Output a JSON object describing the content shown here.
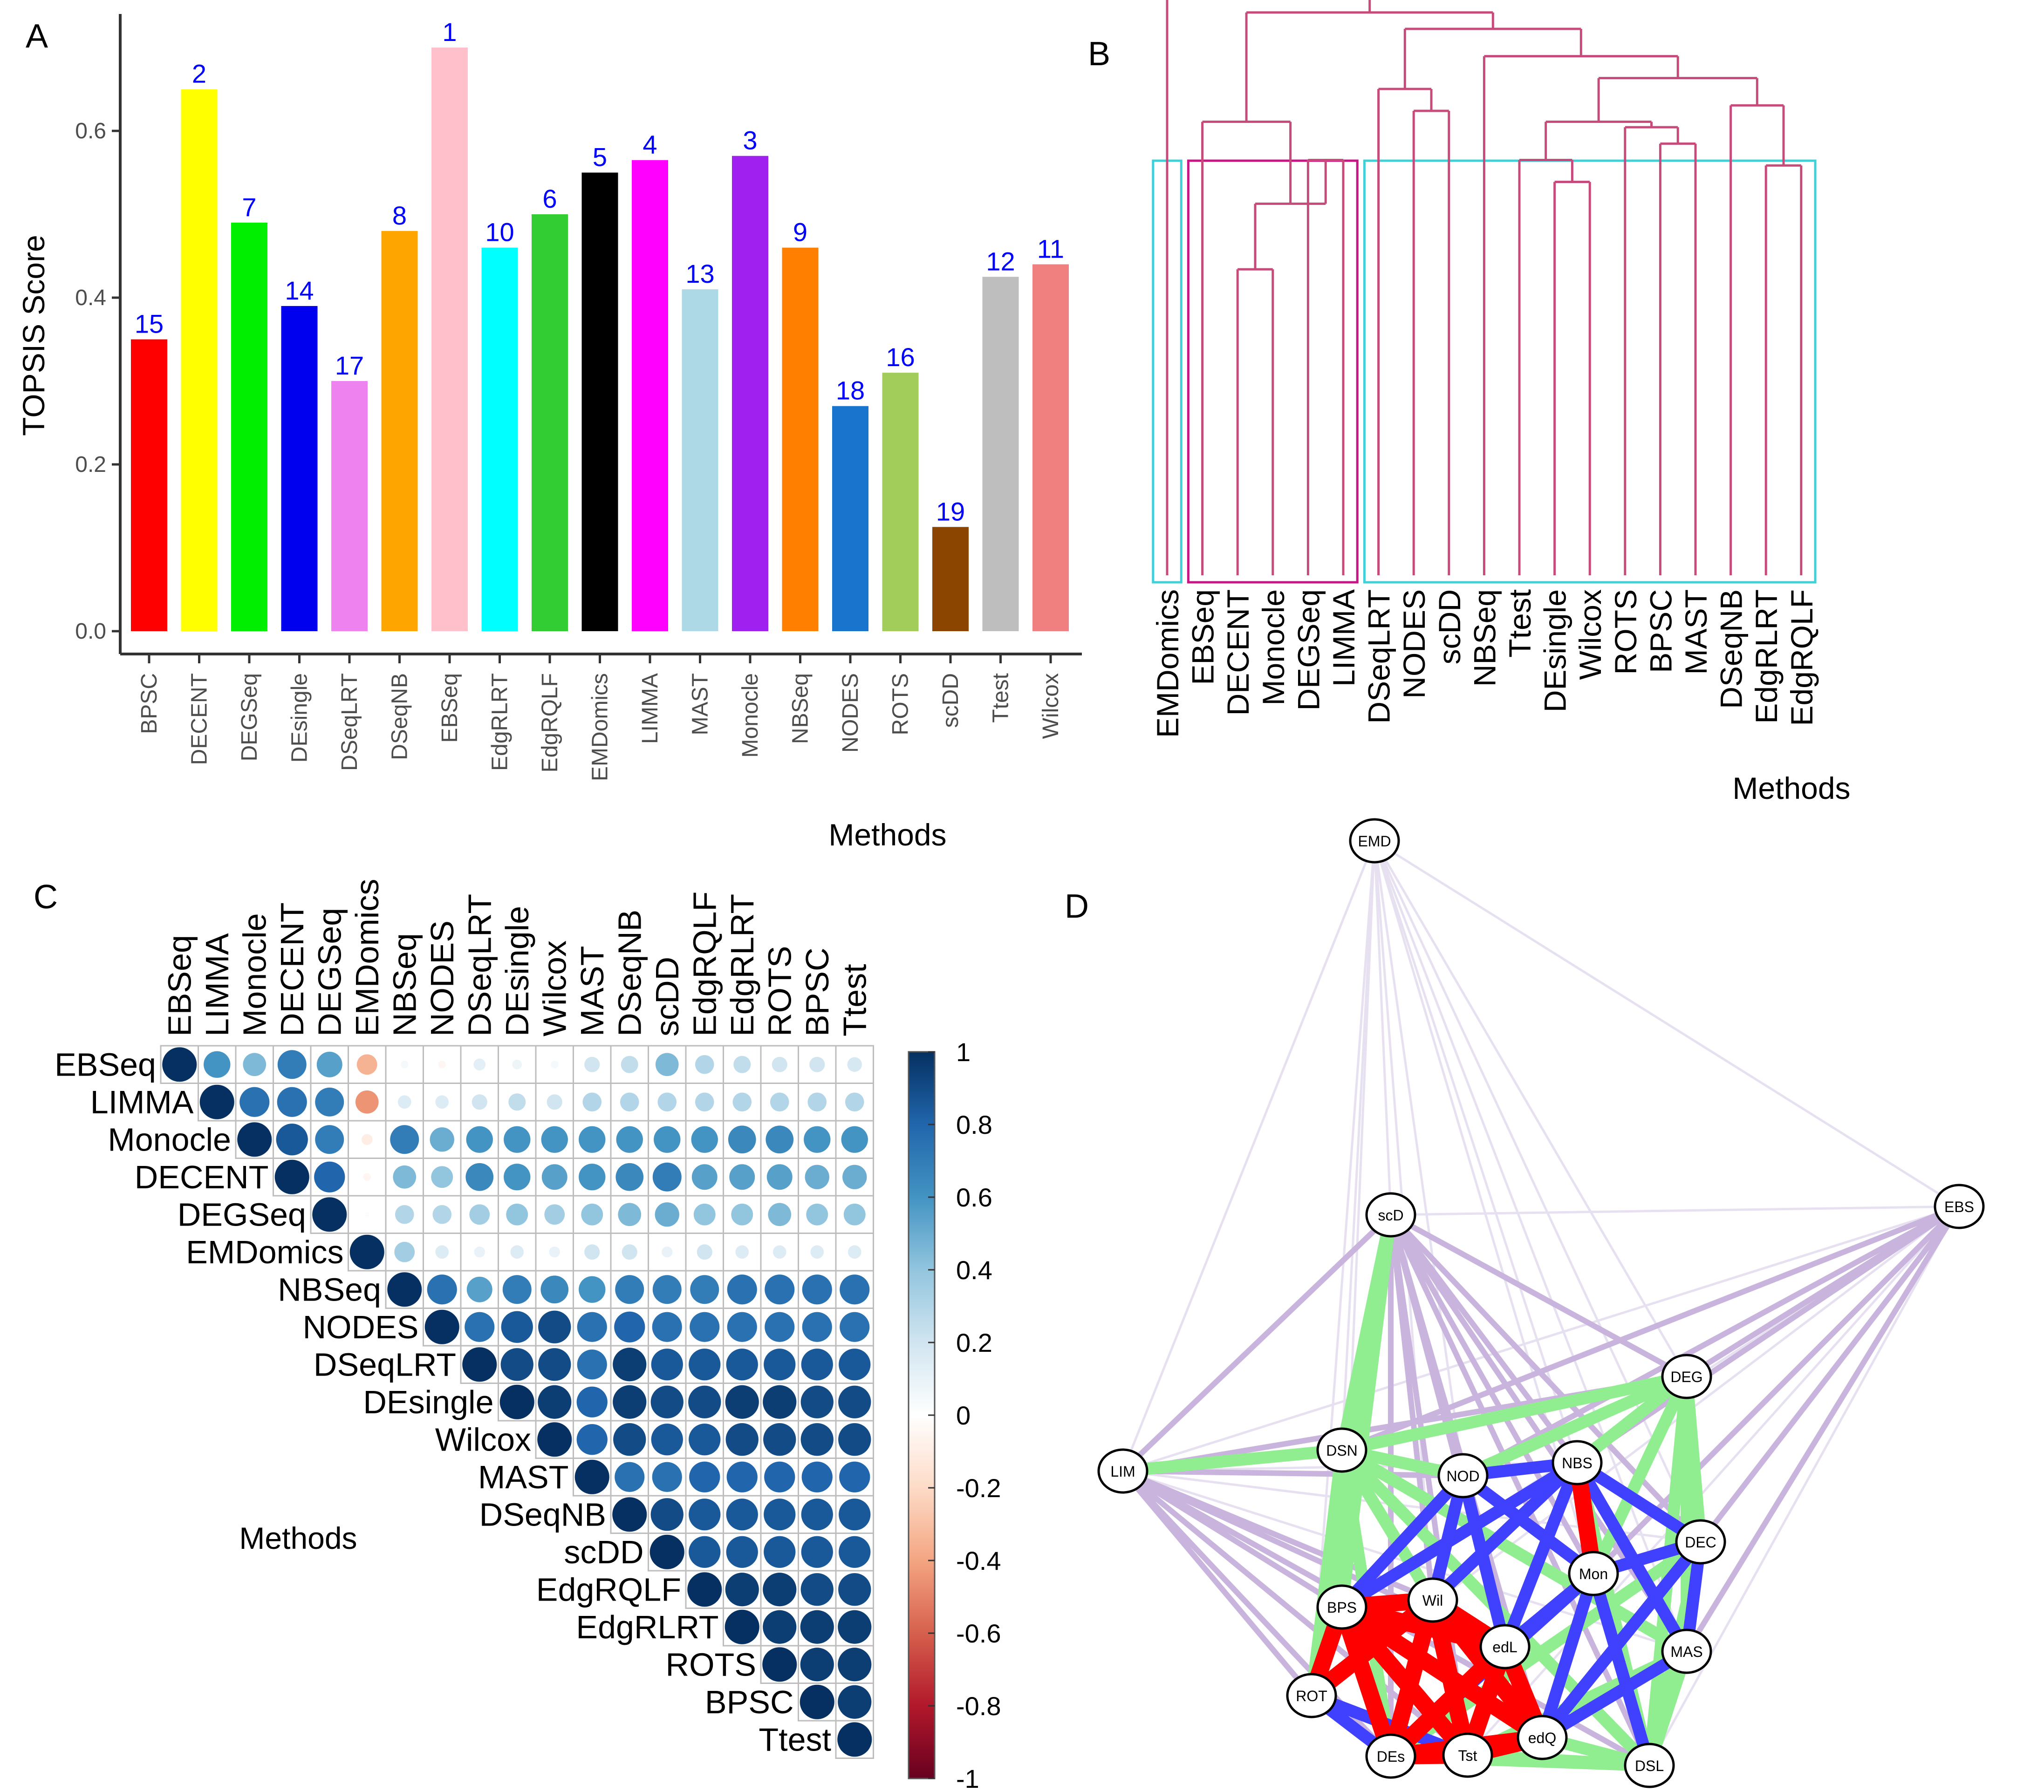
{
  "panel_labels": {
    "a": "A",
    "b": "B",
    "c": "C",
    "d": "D"
  },
  "chart_data": [
    {
      "panel": "A",
      "type": "bar",
      "title": "",
      "xlabel": "Methods",
      "ylabel": "TOPSIS Score",
      "ylim": [
        0,
        0.72
      ],
      "yticks": [
        "0.0",
        "0.2",
        "0.4",
        "0.6"
      ],
      "categories": [
        "BPSC",
        "DECENT",
        "DEGSeq",
        "DEsingle",
        "DSeqLRT",
        "DSeqNB",
        "EBSeq",
        "EdgRLRT",
        "EdgRQLF",
        "EMDomics",
        "LIMMA",
        "MAST",
        "Monocle",
        "NBSeq",
        "NODES",
        "ROTS",
        "scDD",
        "Ttest",
        "Wilcox"
      ],
      "values": [
        0.35,
        0.65,
        0.49,
        0.39,
        0.3,
        0.48,
        0.7,
        0.46,
        0.5,
        0.55,
        0.565,
        0.41,
        0.57,
        0.46,
        0.27,
        0.31,
        0.125,
        0.425,
        0.44
      ],
      "ranks": [
        "15",
        "2",
        "7",
        "14",
        "17",
        "8",
        "1",
        "10",
        "6",
        "5",
        "4",
        "13",
        "3",
        "9",
        "18",
        "16",
        "19",
        "12",
        "11"
      ],
      "colors": [
        "#ff0000",
        "#ffff00",
        "#00ee00",
        "#0000ee",
        "#ee82ee",
        "#ffa500",
        "#ffc0cb",
        "#00ffff",
        "#32cd32",
        "#000000",
        "#ff00ff",
        "#add8e6",
        "#a020f0",
        "#ff7f00",
        "#1874cd",
        "#a2cd5a",
        "#8b4500",
        "#bebebe",
        "#f08080"
      ],
      "rank_label_color": "#0000ff"
    },
    {
      "panel": "B",
      "type": "dendrogram",
      "xlabel": "Methods",
      "leaves": [
        "EMDomics",
        "EBSeq",
        "DECENT",
        "Monocle",
        "DEGSeq",
        "LIMMA",
        "DSeqLRT",
        "NODES",
        "scDD",
        "NBSeq",
        "Ttest",
        "DEsingle",
        "Wilcox",
        "ROTS",
        "BPSC",
        "MAST",
        "DSeqNB",
        "EdgRLRT",
        "EdgRQLF"
      ],
      "merges": [
        [
          -4,
          -5,
          0.49
        ],
        [
          -6,
          -7,
          0.59
        ],
        [
          1,
          2,
          0.66
        ],
        [
          -3,
          3,
          0.78
        ],
        [
          -2,
          4,
          0.81
        ],
        [
          -8,
          -9,
          0.65
        ],
        [
          -7.5,
          -10,
          0.73
        ],
        [
          -13,
          -14,
          0.36
        ],
        [
          -12,
          8,
          0.39
        ],
        [
          -11,
          9,
          0.41
        ],
        [
          -15,
          -16,
          0.41
        ],
        [
          -17,
          11,
          0.47
        ],
        [
          10,
          12,
          0.52
        ],
        [
          -18,
          -19,
          0.38
        ],
        [
          -17.5,
          14,
          0.6
        ],
        [
          13,
          15,
          0.68
        ],
        [
          -10.5,
          16,
          0.76
        ],
        [
          -9.5,
          17,
          0.82
        ],
        [
          5,
          18,
          0.9
        ],
        [
          -1,
          19,
          1.0
        ]
      ],
      "clusters": [
        {
          "from": "EMDomics",
          "to": "EMDomics",
          "color": "#00ced1"
        },
        {
          "from": "EBSeq",
          "to": "LIMMA",
          "color": "#c71585"
        },
        {
          "from": "DSeqLRT",
          "to": "EdgRQLF",
          "color": "#00ced1"
        }
      ],
      "line_color": "#c74b7a"
    },
    {
      "panel": "C",
      "type": "heatmap",
      "xlabel": "Methods",
      "labels": [
        "EBSeq",
        "LIMMA",
        "Monocle",
        "DECENT",
        "DEGSeq",
        "EMDomics",
        "NBSeq",
        "NODES",
        "DSeqLRT",
        "DEsingle",
        "Wilcox",
        "MAST",
        "DSeqNB",
        "scDD",
        "EdgRQLF",
        "EdgRLRT",
        "ROTS",
        "BPSC",
        "Ttest"
      ],
      "upper": [
        [
          1,
          0.6,
          0.45,
          0.7,
          0.55,
          -0.35,
          0.05,
          -0.05,
          0.12,
          0.08,
          0.05,
          0.2,
          0.25,
          0.45,
          0.3,
          0.25,
          0.2,
          0.2,
          0.18
        ],
        [
          1,
          0.75,
          0.75,
          0.7,
          -0.45,
          0.15,
          0.15,
          0.2,
          0.25,
          0.2,
          0.3,
          0.3,
          0.3,
          0.3,
          0.3,
          0.3,
          0.3,
          0.3
        ],
        [
          1,
          0.85,
          0.7,
          -0.1,
          0.7,
          0.5,
          0.6,
          0.6,
          0.6,
          0.6,
          0.6,
          0.6,
          0.6,
          0.65,
          0.65,
          0.6,
          0.6
        ],
        [
          1,
          0.8,
          -0.05,
          0.45,
          0.4,
          0.65,
          0.6,
          0.55,
          0.6,
          0.65,
          0.7,
          0.55,
          0.55,
          0.55,
          0.5,
          0.5
        ],
        [
          1,
          0.02,
          0.3,
          0.3,
          0.35,
          0.4,
          0.35,
          0.4,
          0.45,
          0.5,
          0.4,
          0.4,
          0.45,
          0.4,
          0.4
        ],
        [
          1,
          0.35,
          0.15,
          0.1,
          0.15,
          0.1,
          0.2,
          0.2,
          0.1,
          0.2,
          0.15,
          0.15,
          0.15,
          0.15
        ],
        [
          1,
          0.75,
          0.55,
          0.7,
          0.65,
          0.6,
          0.7,
          0.7,
          0.7,
          0.75,
          0.75,
          0.75,
          0.75
        ],
        [
          1,
          0.75,
          0.85,
          0.9,
          0.75,
          0.8,
          0.75,
          0.75,
          0.75,
          0.75,
          0.75,
          0.75
        ],
        [
          1,
          0.9,
          0.9,
          0.75,
          0.95,
          0.85,
          0.85,
          0.85,
          0.85,
          0.85,
          0.85
        ],
        [
          1,
          0.95,
          0.8,
          0.95,
          0.9,
          0.9,
          0.95,
          0.95,
          0.9,
          0.9
        ],
        [
          1,
          0.8,
          0.9,
          0.85,
          0.85,
          0.9,
          0.9,
          0.9,
          0.9
        ],
        [
          1,
          0.75,
          0.75,
          0.8,
          0.8,
          0.8,
          0.8,
          0.8
        ],
        [
          1,
          0.9,
          0.85,
          0.85,
          0.85,
          0.85,
          0.85
        ],
        [
          1,
          0.85,
          0.85,
          0.85,
          0.85,
          0.85
        ],
        [
          1,
          0.95,
          0.95,
          0.9,
          0.9
        ],
        [
          1,
          0.95,
          0.95,
          0.95
        ],
        [
          1,
          0.95,
          0.95
        ],
        [
          1,
          0.95
        ],
        [
          1
        ]
      ],
      "colorbar_ticks": [
        "1",
        "0.8",
        "0.6",
        "0.4",
        "0.2",
        "0",
        "-0.2",
        "-0.4",
        "-0.6",
        "-0.8",
        "-1"
      ],
      "colorbar_range": [
        -1,
        1
      ]
    },
    {
      "panel": "D",
      "type": "network",
      "nodes": [
        {
          "id": "EMD",
          "label": "EMD"
        },
        {
          "id": "scD",
          "label": "scD"
        },
        {
          "id": "EBS",
          "label": "EBS"
        },
        {
          "id": "DEG",
          "label": "DEG"
        },
        {
          "id": "LIM",
          "label": "LIM"
        },
        {
          "id": "DSN",
          "label": "DSN"
        },
        {
          "id": "NOD",
          "label": "NOD"
        },
        {
          "id": "NBS",
          "label": "NBS"
        },
        {
          "id": "DEC",
          "label": "DEC"
        },
        {
          "id": "Mon",
          "label": "Mon"
        },
        {
          "id": "BPS",
          "label": "BPS"
        },
        {
          "id": "Wil",
          "label": "Wil"
        },
        {
          "id": "edL",
          "label": "edL"
        },
        {
          "id": "MAS",
          "label": "MAS"
        },
        {
          "id": "ROT",
          "label": "ROT"
        },
        {
          "id": "DEs",
          "label": "DEs"
        },
        {
          "id": "Tst",
          "label": "Tst"
        },
        {
          "id": "edQ",
          "label": "edQ"
        },
        {
          "id": "DSL",
          "label": "DSL"
        }
      ],
      "edge_colors": {
        "weak": "#e6e0f0",
        "moderate": "#c8b4dc",
        "strong": "#90ee90",
        "stronger": "#4040ff",
        "strongest": "#ff0000"
      },
      "edges_strongest": [
        [
          "NBS",
          "Mon"
        ],
        [
          "BPS",
          "Wil"
        ],
        [
          "BPS",
          "edL"
        ],
        [
          "BPS",
          "DEs"
        ],
        [
          "BPS",
          "Tst"
        ],
        [
          "BPS",
          "edQ"
        ],
        [
          "Wil",
          "edL"
        ],
        [
          "Wil",
          "DEs"
        ],
        [
          "Wil",
          "Tst"
        ],
        [
          "Wil",
          "edQ"
        ],
        [
          "edL",
          "DEs"
        ],
        [
          "edL",
          "Tst"
        ],
        [
          "edL",
          "edQ"
        ],
        [
          "DEs",
          "Tst"
        ],
        [
          "Tst",
          "edQ"
        ],
        [
          "DEs",
          "edQ"
        ],
        [
          "BPS",
          "ROT"
        ],
        [
          "ROT",
          "Wil"
        ]
      ],
      "edges_stronger": [
        [
          "NOD",
          "NBS"
        ],
        [
          "NOD",
          "Mon"
        ],
        [
          "NOD",
          "BPS"
        ],
        [
          "NOD",
          "Wil"
        ],
        [
          "NOD",
          "edL"
        ],
        [
          "NBS",
          "DEC"
        ],
        [
          "NBS",
          "edL"
        ],
        [
          "NBS",
          "Wil"
        ],
        [
          "DEC",
          "Mon"
        ],
        [
          "DEC",
          "MAS"
        ],
        [
          "Mon",
          "edL"
        ],
        [
          "Mon",
          "DSL"
        ],
        [
          "Mon",
          "edQ"
        ],
        [
          "Mon",
          "DEs"
        ],
        [
          "NBS",
          "MAS"
        ],
        [
          "ROT",
          "DEs"
        ],
        [
          "ROT",
          "Tst"
        ],
        [
          "BPS",
          "NBS"
        ],
        [
          "MAS",
          "edQ"
        ],
        [
          "DEC",
          "edQ"
        ]
      ],
      "edges_strong": [
        [
          "DSN",
          "NOD"
        ],
        [
          "DSN",
          "DEG"
        ],
        [
          "DSN",
          "BPS"
        ],
        [
          "DSN",
          "ROT"
        ],
        [
          "DSN",
          "DEs"
        ],
        [
          "DSN",
          "MAS"
        ],
        [
          "DSN",
          "DSL"
        ],
        [
          "DSN",
          "Wil"
        ],
        [
          "DSN",
          "LIM"
        ],
        [
          "scD",
          "DSN"
        ],
        [
          "scD",
          "BPS"
        ],
        [
          "scD",
          "ROT"
        ],
        [
          "DEG",
          "NBS"
        ],
        [
          "DEG",
          "DEC"
        ],
        [
          "DEG",
          "MAS"
        ],
        [
          "DEG",
          "DSL"
        ],
        [
          "DEG",
          "NOD"
        ],
        [
          "DEG",
          "Mon"
        ],
        [
          "DSL",
          "edQ"
        ],
        [
          "DSL",
          "Tst"
        ],
        [
          "DSL",
          "DEs"
        ],
        [
          "DSL",
          "MAS"
        ],
        [
          "DSL",
          "NBS"
        ],
        [
          "MAS",
          "Tst"
        ],
        [
          "DEC",
          "DSL"
        ],
        [
          "DEC",
          "DEs"
        ]
      ],
      "edges_moderate": [
        [
          "scD",
          "NOD"
        ],
        [
          "scD",
          "NBS"
        ],
        [
          "scD",
          "Wil"
        ],
        [
          "scD",
          "edL"
        ],
        [
          "scD",
          "DEs"
        ],
        [
          "scD",
          "Tst"
        ],
        [
          "scD",
          "edQ"
        ],
        [
          "scD",
          "DEG"
        ],
        [
          "scD",
          "Mon"
        ],
        [
          "scD",
          "DSL"
        ],
        [
          "scD",
          "MAS"
        ],
        [
          "scD",
          "DEC"
        ],
        [
          "LIM",
          "NOD"
        ],
        [
          "LIM",
          "BPS"
        ],
        [
          "LIM",
          "ROT"
        ],
        [
          "LIM",
          "DEs"
        ],
        [
          "LIM",
          "Tst"
        ],
        [
          "LIM",
          "Wil"
        ],
        [
          "LIM",
          "scD"
        ],
        [
          "LIM",
          "DEG"
        ],
        [
          "LIM",
          "DSL"
        ],
        [
          "LIM",
          "edL"
        ],
        [
          "EBS",
          "DEG"
        ],
        [
          "EBS",
          "NBS"
        ],
        [
          "EBS",
          "DEC"
        ],
        [
          "EBS",
          "MAS"
        ],
        [
          "EBS",
          "NOD"
        ],
        [
          "EBS",
          "DSN"
        ],
        [
          "EBS",
          "Mon"
        ]
      ],
      "edges_weak": [
        [
          "EMD",
          "scD"
        ],
        [
          "EMD",
          "DSN"
        ],
        [
          "EMD",
          "NOD"
        ],
        [
          "EMD",
          "NBS"
        ],
        [
          "EMD",
          "DEG"
        ],
        [
          "EMD",
          "EBS"
        ],
        [
          "EMD",
          "LIM"
        ],
        [
          "EMD",
          "DEC"
        ],
        [
          "EMD",
          "MAS"
        ],
        [
          "EMD",
          "BPS"
        ],
        [
          "EMD",
          "ROT"
        ],
        [
          "EMD",
          "Wil"
        ],
        [
          "EMD",
          "DSL"
        ],
        [
          "EBS",
          "BPS"
        ],
        [
          "EBS",
          "ROT"
        ],
        [
          "EBS",
          "DSL"
        ],
        [
          "EBS",
          "Tst"
        ],
        [
          "EBS",
          "scD"
        ],
        [
          "LIM",
          "EBS"
        ],
        [
          "LIM",
          "NBS"
        ],
        [
          "LIM",
          "MAS"
        ],
        [
          "LIM",
          "DEC"
        ]
      ]
    }
  ]
}
